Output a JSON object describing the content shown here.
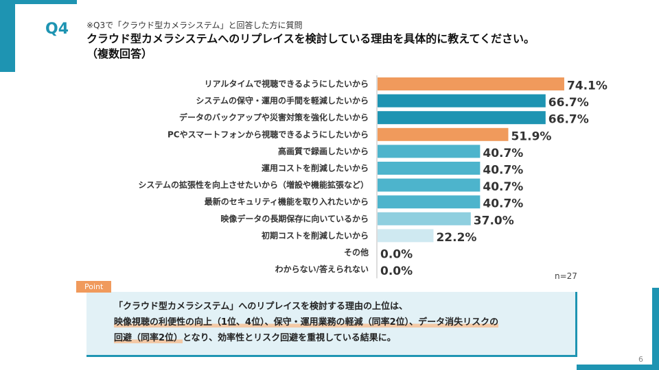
{
  "header": {
    "question_number": "Q4",
    "subnote": "※Q3で「クラウド型カメラシステム」と回答した方に質問",
    "title_line1": "クラウド型カメラシステムへのリプレイスを検討している理由を具体的に教えてください。",
    "title_line2": "（複数回答）"
  },
  "colors": {
    "accent": "#1e94b2",
    "orange": "#f09a5c",
    "teal_dark": "#1e94b2",
    "teal_mid": "#4db4cc",
    "teal_light": "#8fcfdf",
    "teal_pale": "#cfe9f1"
  },
  "chart_data": {
    "type": "bar",
    "orientation": "horizontal",
    "title": "",
    "xlabel": "",
    "ylabel": "",
    "xlim": [
      0,
      100
    ],
    "unit": "%",
    "categories": [
      "リアルタイムで視聴できるようにしたいから",
      "システムの保守・運用の手間を軽減したいから",
      "データのバックアップや災害対策を強化したいから",
      "PCやスマートフォンから視聴できるようにしたいから",
      "高画質で録画したいから",
      "運用コストを削減したいから",
      "システムの拡張性を向上させたいから（増設や機能拡張など）",
      "最新のセキュリティ機能を取り入れたいから",
      "映像データの長期保存に向いているから",
      "初期コストを削減したいから",
      "その他",
      "わからない/答えられない"
    ],
    "values": [
      74.1,
      66.7,
      66.7,
      51.9,
      40.7,
      40.7,
      40.7,
      40.7,
      37.0,
      22.2,
      0.0,
      0.0
    ],
    "value_labels": [
      "74.1%",
      "66.7%",
      "66.7%",
      "51.9%",
      "40.7%",
      "40.7%",
      "40.7%",
      "40.7%",
      "37.0%",
      "22.2%",
      "0.0%",
      "0.0%"
    ],
    "bar_colors": [
      "#f09a5c",
      "#1e94b2",
      "#1e94b2",
      "#f09a5c",
      "#4db4cc",
      "#4db4cc",
      "#4db4cc",
      "#4db4cc",
      "#8fcfdf",
      "#cfe9f1",
      "#cfe9f1",
      "#cfe9f1"
    ],
    "grid": false,
    "sample_size": "n=27"
  },
  "point": {
    "tag": "Point",
    "line1": "「クラウド型カメラシステム」へのリプレイスを検討する理由の上位は、",
    "line2": "映像視聴の利便性の向上（1位、4位）、保守・運用業務の軽減（同率2位）、データ消失リスクの",
    "line3_highlight": "回避（同率2位）",
    "line3_rest": "となり、効率性とリスク回避を重視している結果に。"
  },
  "footer": {
    "page_number": "6"
  }
}
